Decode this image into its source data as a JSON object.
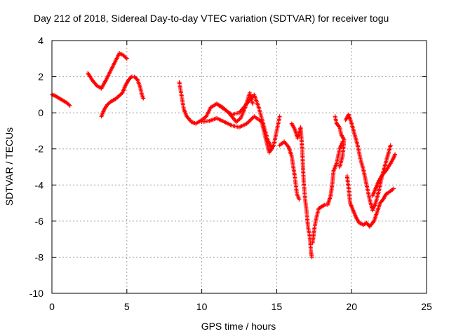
{
  "chart_data": {
    "type": "scatter",
    "title": "Day 212 of 2018, Sidereal Day-to-day VTEC variation (SDTVAR) for receiver togu",
    "xlabel": "GPS time / hours",
    "ylabel": "SDTVAR / TECUs",
    "xlim": [
      0,
      25
    ],
    "ylim": [
      -10,
      4
    ],
    "xticks": [
      "0",
      "5",
      "10",
      "15",
      "20",
      "25"
    ],
    "yticks": [
      "-10",
      "-8",
      "-6",
      "-4",
      "-2",
      "0",
      "2",
      "4"
    ],
    "grid": true,
    "marker": "+",
    "color": "#ff0000",
    "series": [
      {
        "segments": [
          [
            [
              0.0,
              1.0
            ],
            [
              0.2,
              0.95
            ],
            [
              0.4,
              0.85
            ],
            [
              0.6,
              0.75
            ],
            [
              0.8,
              0.65
            ],
            [
              1.0,
              0.55
            ],
            [
              1.2,
              0.4
            ]
          ],
          [
            [
              2.4,
              2.2
            ],
            [
              2.7,
              1.8
            ],
            [
              3.0,
              1.5
            ],
            [
              3.3,
              1.35
            ],
            [
              3.6,
              1.8
            ],
            [
              3.9,
              2.3
            ],
            [
              4.2,
              2.8
            ],
            [
              4.5,
              3.3
            ],
            [
              4.75,
              3.2
            ],
            [
              5.0,
              3.0
            ]
          ],
          [
            [
              3.3,
              -0.2
            ],
            [
              3.5,
              0.2
            ],
            [
              3.7,
              0.45
            ],
            [
              3.9,
              0.6
            ],
            [
              4.1,
              0.7
            ],
            [
              4.3,
              0.8
            ],
            [
              4.5,
              0.95
            ],
            [
              4.7,
              1.1
            ],
            [
              4.9,
              1.5
            ],
            [
              5.1,
              1.8
            ],
            [
              5.3,
              2.0
            ],
            [
              5.5,
              2.0
            ],
            [
              5.7,
              1.85
            ],
            [
              5.9,
              1.4
            ],
            [
              6.0,
              1.0
            ],
            [
              6.1,
              0.8
            ]
          ],
          [
            [
              8.5,
              1.7
            ],
            [
              8.6,
              1.2
            ],
            [
              8.8,
              0.2
            ],
            [
              9.0,
              -0.2
            ],
            [
              9.3,
              -0.5
            ],
            [
              9.6,
              -0.6
            ],
            [
              10.0,
              -0.4
            ],
            [
              10.3,
              -0.2
            ],
            [
              10.6,
              0.3
            ],
            [
              11.0,
              0.5
            ],
            [
              11.4,
              0.3
            ],
            [
              11.8,
              0.0
            ],
            [
              12.0,
              -0.2
            ],
            [
              12.3,
              -0.5
            ],
            [
              12.6,
              -0.3
            ],
            [
              12.9,
              0.3
            ],
            [
              13.2,
              1.1
            ],
            [
              13.4,
              0.5
            ]
          ],
          [
            [
              10.0,
              -0.5
            ],
            [
              10.5,
              -0.45
            ],
            [
              11.0,
              -0.3
            ],
            [
              11.5,
              -0.5
            ],
            [
              12.0,
              -0.7
            ],
            [
              12.5,
              -0.8
            ],
            [
              13.0,
              -0.6
            ],
            [
              13.5,
              -0.2
            ],
            [
              14.0,
              -0.5
            ],
            [
              14.2,
              -1.2
            ],
            [
              14.5,
              -2.2
            ],
            [
              14.8,
              -1.8
            ],
            [
              15.0,
              -1.0
            ],
            [
              15.2,
              -0.2
            ]
          ],
          [
            [
              11.0,
              0.5
            ],
            [
              11.5,
              0.2
            ],
            [
              12.0,
              -0.1
            ],
            [
              12.5,
              0.0
            ],
            [
              13.0,
              0.5
            ],
            [
              13.5,
              1.0
            ],
            [
              13.8,
              0.3
            ],
            [
              14.1,
              -0.6
            ],
            [
              14.4,
              -1.5
            ],
            [
              14.7,
              -2.0
            ]
          ],
          [
            [
              15.2,
              -1.8
            ],
            [
              15.5,
              -1.6
            ],
            [
              15.8,
              -1.9
            ],
            [
              16.0,
              -2.4
            ],
            [
              16.2,
              -3.5
            ],
            [
              16.35,
              -4.5
            ],
            [
              16.5,
              -4.8
            ]
          ],
          [
            [
              16.0,
              -0.6
            ],
            [
              16.2,
              -0.9
            ],
            [
              16.4,
              -1.4
            ],
            [
              16.6,
              -0.8
            ],
            [
              16.7,
              -2.0
            ],
            [
              16.8,
              -3.8
            ],
            [
              16.9,
              -4.8
            ],
            [
              17.0,
              -5.5
            ],
            [
              17.1,
              -6.4
            ],
            [
              17.2,
              -6.8
            ],
            [
              17.3,
              -7.8
            ],
            [
              17.35,
              -8.0
            ]
          ],
          [
            [
              17.4,
              -7.2
            ],
            [
              17.5,
              -6.5
            ],
            [
              17.6,
              -6.0
            ],
            [
              17.8,
              -5.3
            ],
            [
              18.0,
              -5.2
            ],
            [
              18.2,
              -5.1
            ],
            [
              18.4,
              -5.1
            ],
            [
              18.6,
              -4.6
            ],
            [
              18.7,
              -4.0
            ],
            [
              18.8,
              -3.2
            ],
            [
              19.0,
              -2.8
            ],
            [
              19.2,
              -2.0
            ],
            [
              19.4,
              -1.6
            ]
          ],
          [
            [
              18.9,
              -0.2
            ],
            [
              19.0,
              -0.6
            ],
            [
              19.2,
              -0.8
            ],
            [
              19.3,
              -1.2
            ],
            [
              19.5,
              -1.5
            ],
            [
              19.4,
              -2.4
            ],
            [
              19.2,
              -3.0
            ]
          ],
          [
            [
              19.6,
              -0.4
            ],
            [
              19.8,
              -0.1
            ],
            [
              20.0,
              -0.6
            ],
            [
              20.2,
              -1.2
            ],
            [
              20.4,
              -1.8
            ],
            [
              20.6,
              -2.6
            ],
            [
              20.8,
              -3.2
            ],
            [
              21.0,
              -4.0
            ],
            [
              21.2,
              -4.8
            ],
            [
              21.4,
              -5.4
            ],
            [
              21.6,
              -5.0
            ],
            [
              21.8,
              -4.4
            ],
            [
              22.0,
              -3.6
            ],
            [
              22.2,
              -3.0
            ],
            [
              22.4,
              -2.4
            ],
            [
              22.6,
              -1.8
            ]
          ],
          [
            [
              19.7,
              -3.5
            ],
            [
              19.8,
              -4.2
            ],
            [
              19.9,
              -5.0
            ],
            [
              20.1,
              -5.4
            ],
            [
              20.3,
              -5.8
            ],
            [
              20.5,
              -6.1
            ],
            [
              20.8,
              -6.2
            ],
            [
              21.0,
              -6.1
            ],
            [
              21.2,
              -6.3
            ],
            [
              21.5,
              -6.0
            ],
            [
              21.7,
              -5.5
            ],
            [
              21.9,
              -5.0
            ],
            [
              22.1,
              -4.8
            ],
            [
              22.3,
              -4.5
            ],
            [
              22.5,
              -4.4
            ],
            [
              22.8,
              -4.2
            ]
          ],
          [
            [
              21.4,
              -4.6
            ],
            [
              21.6,
              -4.2
            ],
            [
              21.8,
              -3.8
            ],
            [
              22.0,
              -3.5
            ],
            [
              22.3,
              -3.2
            ],
            [
              22.6,
              -2.8
            ],
            [
              22.8,
              -2.5
            ],
            [
              22.9,
              -2.3
            ]
          ]
        ]
      }
    ]
  }
}
